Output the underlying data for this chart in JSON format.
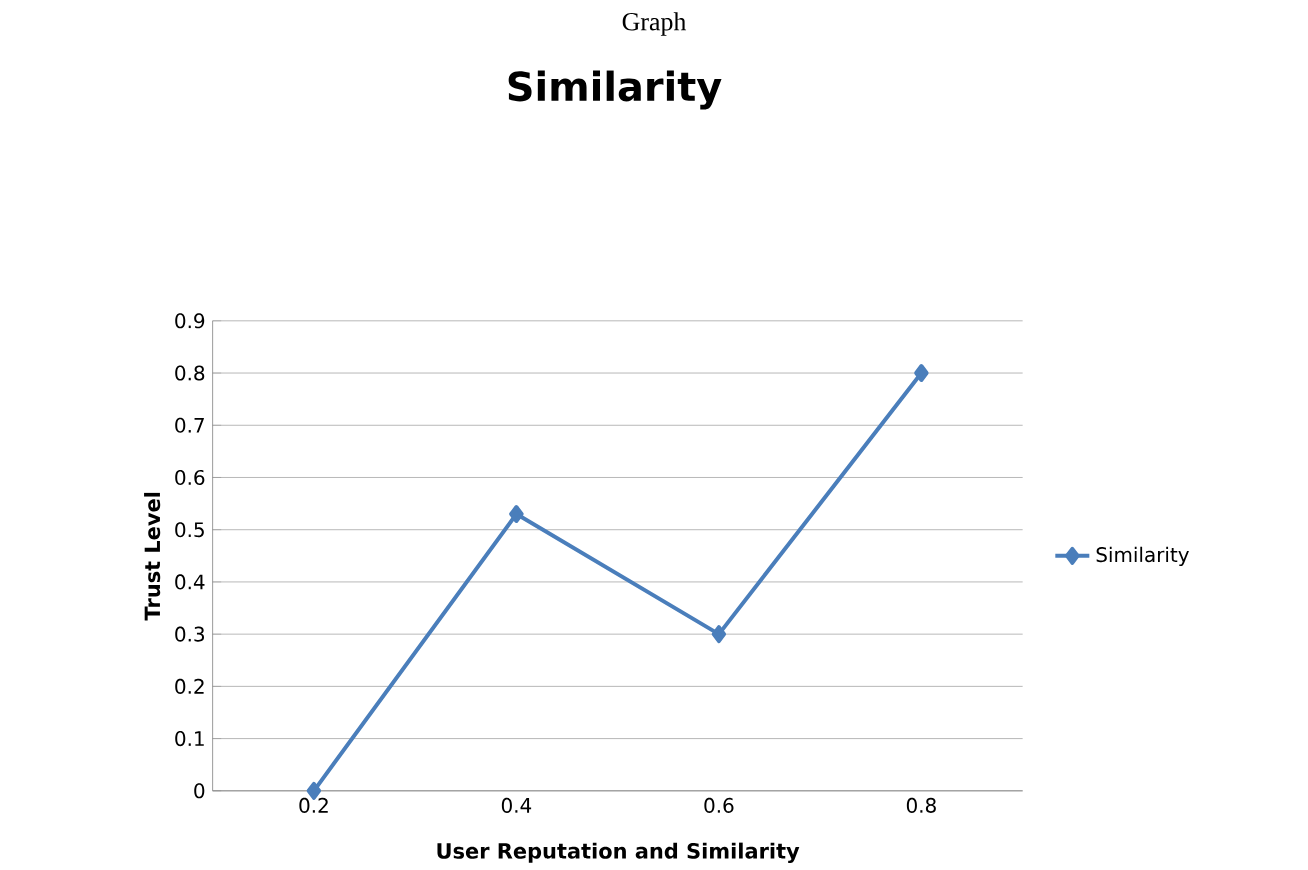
{
  "chart_data": {
    "type": "line",
    "title": "Similarity",
    "annotations": [
      "Graph"
    ],
    "xlabel": "User Reputation and Similarity",
    "ylabel": "Trust Level",
    "categories": [
      "0.2",
      "0.4",
      "0.6",
      "0.8"
    ],
    "series": [
      {
        "name": "Similarity",
        "color": "#4a7ebb",
        "values": [
          0,
          0.53,
          0.3,
          0.8
        ]
      }
    ],
    "ylim": [
      0,
      0.9
    ],
    "yticks": [
      0,
      0.1,
      0.2,
      0.3,
      0.4,
      0.5,
      0.6,
      0.7,
      0.8,
      0.9
    ],
    "grid": "y",
    "legend": "right",
    "marker": "diamond",
    "line_style": "solid"
  }
}
